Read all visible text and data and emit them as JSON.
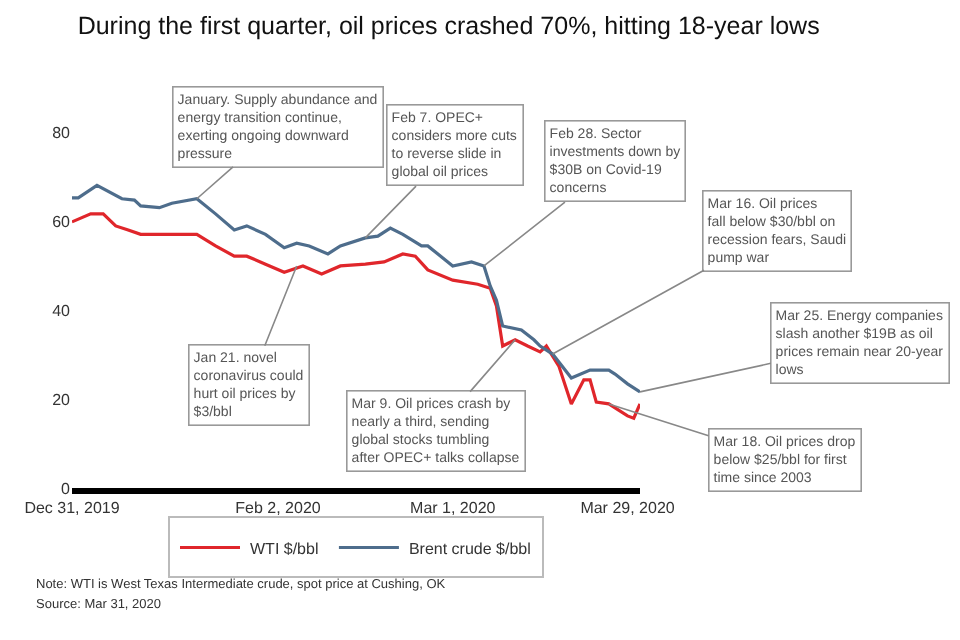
{
  "chart_data": {
    "type": "line",
    "title": "During the first quarter, oil prices crashed 70%, hitting 18-year lows",
    "xlim": [
      "2019-12-31",
      "2020-03-31"
    ],
    "xticks": [
      {
        "value": "2019-12-31",
        "label": "Dec 31, 2019"
      },
      {
        "value": "2020-02-02",
        "label": "Feb 2, 2020"
      },
      {
        "value": "2020-03-01",
        "label": "Mar 1, 2020"
      },
      {
        "value": "2020-03-29",
        "label": "Mar 29, 2020"
      }
    ],
    "ylim": [
      0,
      80
    ],
    "yticks": [
      0,
      20,
      40,
      60,
      80
    ],
    "legend": "bottom",
    "series": [
      {
        "name": "WTI $/bbl",
        "color": "#e0262b",
        "x": [
          "2019-12-31",
          "2020-01-03",
          "2020-01-05",
          "2020-01-07",
          "2020-01-09",
          "2020-01-11",
          "2020-01-14",
          "2020-01-16",
          "2020-01-20",
          "2020-01-23",
          "2020-01-26",
          "2020-01-28",
          "2020-01-31",
          "2020-02-03",
          "2020-02-06",
          "2020-02-09",
          "2020-02-12",
          "2020-02-16",
          "2020-02-19",
          "2020-02-22",
          "2020-02-24",
          "2020-02-26",
          "2020-03-01",
          "2020-03-05",
          "2020-03-07",
          "2020-03-08",
          "2020-03-09",
          "2020-03-11",
          "2020-03-13",
          "2020-03-15",
          "2020-03-16",
          "2020-03-18",
          "2020-03-20",
          "2020-03-22",
          "2020-03-23",
          "2020-03-24",
          "2020-03-26",
          "2020-03-29",
          "2020-03-30",
          "2020-03-31"
        ],
        "values": [
          59.8,
          61.6,
          61.6,
          58.9,
          58,
          57,
          57,
          57,
          57,
          54.4,
          52.1,
          52.1,
          50.3,
          48.5,
          49.9,
          48.1,
          49.9,
          50.3,
          50.8,
          52.6,
          52.1,
          49,
          46.7,
          45.8,
          44.9,
          40.9,
          31.9,
          33.3,
          31.9,
          30.6,
          31.9,
          27.4,
          18.9,
          24.3,
          24.3,
          19.3,
          18.9,
          16.2,
          15.7,
          18.9
        ]
      },
      {
        "name": "Brent crude $/bbl",
        "color": "#4e6d8c",
        "x": [
          "2019-12-31",
          "2020-01-01",
          "2020-01-04",
          "2020-01-08",
          "2020-01-10",
          "2020-01-11",
          "2020-01-14",
          "2020-01-16",
          "2020-01-20",
          "2020-01-23",
          "2020-01-26",
          "2020-01-28",
          "2020-01-31",
          "2020-02-03",
          "2020-02-05",
          "2020-02-07",
          "2020-02-10",
          "2020-02-12",
          "2020-02-16",
          "2020-02-18",
          "2020-02-20",
          "2020-02-22",
          "2020-02-25",
          "2020-02-26",
          "2020-03-01",
          "2020-03-04",
          "2020-03-06",
          "2020-03-07",
          "2020-03-08",
          "2020-03-09",
          "2020-03-12",
          "2020-03-14",
          "2020-03-15",
          "2020-03-17",
          "2020-03-20",
          "2020-03-23",
          "2020-03-26",
          "2020-03-27",
          "2020-03-29",
          "2020-03-31"
        ],
        "values": [
          65.2,
          65.2,
          68,
          65,
          64.7,
          63.4,
          63,
          64,
          65,
          61.6,
          58,
          58.9,
          57,
          54,
          55,
          54.4,
          52.6,
          54.4,
          56.2,
          56.6,
          58.4,
          57,
          54.4,
          54.4,
          49.9,
          50.8,
          49.9,
          45.4,
          42.2,
          36.4,
          35.5,
          33.3,
          31.9,
          30.1,
          24.7,
          26.5,
          26.5,
          25.6,
          23.4,
          21.6
        ]
      }
    ],
    "annotations": [
      {
        "text": "January. Supply abundance and energy transition continue, exerting ongoing downward pressure",
        "x": "2020-01-20",
        "y": 65
      },
      {
        "text": "Feb 7. OPEC+ considers more cuts to reverse slide in global oil prices",
        "x": "2020-02-16",
        "y": 56.2
      },
      {
        "text": "Feb 28. Sector investments down by $30B on Covid-19 concerns",
        "x": "2020-03-06",
        "y": 49.9
      },
      {
        "text": "Mar 16. Oil prices fall below $30/bbl on recession fears, Saudi pump war",
        "x": "2020-03-17",
        "y": 30.1
      },
      {
        "text": "Mar 25. Energy companies slash another $19B as oil prices remain near 20-year lows",
        "x": "2020-03-31",
        "y": 21.6
      },
      {
        "text": "Mar 18. Oil prices drop below $25/bbl for first time since 2003",
        "x": "2020-03-26",
        "y": 18.9
      },
      {
        "text": "Jan 21. novel coronavirus could hurt oil prices by $3/bbl",
        "x": "2020-02-05",
        "y": 49.9
      },
      {
        "text": "Mar 9. Oil prices crash by nearly a third, sending global stocks tumbling after OPEC+ talks collapse",
        "x": "2020-03-11",
        "y": 33.3
      },
      "Note: WTI is West Texas Intermediate crude, spot price at Cushing, OK",
      "Source: Mar 31, 2020"
    ]
  }
}
